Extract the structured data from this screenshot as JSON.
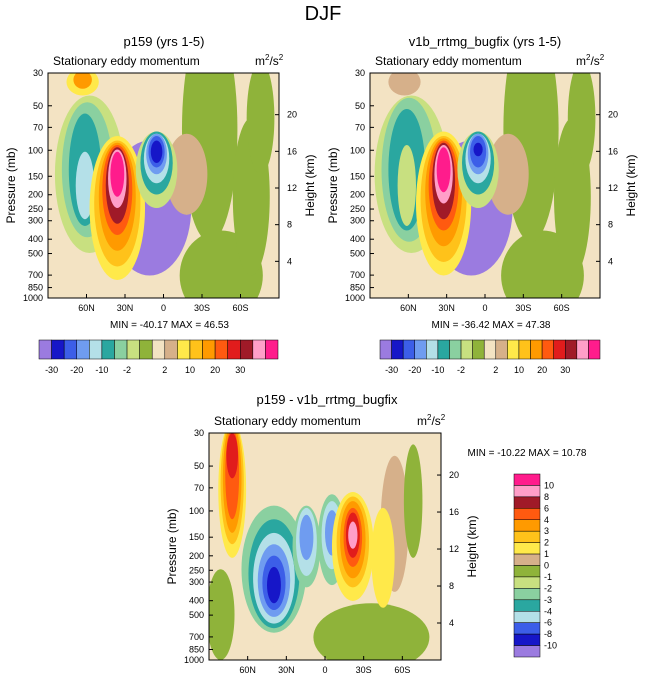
{
  "figure": {
    "title": "DJF"
  },
  "palette": {
    "colors": [
      "#9b7be0",
      "#1616c8",
      "#3c5ee8",
      "#6f9cf0",
      "#b4e0e8",
      "#2aa7a0",
      "#8ad0a0",
      "#c8e080",
      "#8fb33a",
      "#f3e3c3",
      "#d6b08a",
      "#ffe94a",
      "#ffc21a",
      "#ff9a00",
      "#ff5a10",
      "#e11c1c",
      "#a01a28",
      "#ff9ec8",
      "#ff1c8c"
    ]
  },
  "chart_data": [
    {
      "type": "contour",
      "id": "p159",
      "title": "p159 (yrs 1-5)",
      "left_label": "Stationary eddy momentum",
      "units_base": "m",
      "units_sup": "2",
      "units_den": "/s",
      "units_den_sup": "2",
      "ylabel": "Pressure (mb)",
      "ylabel_right": "Height (km)",
      "pressure_ticks": [
        "30",
        "50",
        "70",
        "100",
        "150",
        "200",
        "250",
        "300",
        "400",
        "500",
        "700",
        "850",
        "1000"
      ],
      "height_ticks": [
        "20",
        "16",
        "12",
        "8",
        "4"
      ],
      "lat_ticks": [
        "60N",
        "30N",
        "0",
        "30S",
        "60S"
      ],
      "stats": "MIN = -40.17   MAX =  46.53",
      "colorbar_labels": [
        "-30",
        "-20",
        "-10",
        "-2",
        "2",
        "10",
        "20",
        "30"
      ]
    },
    {
      "type": "contour",
      "id": "v1b",
      "title": "v1b_rrtmg_bugfix (yrs 1-5)",
      "left_label": "Stationary eddy momentum",
      "units_base": "m",
      "units_sup": "2",
      "units_den": "/s",
      "units_den_sup": "2",
      "ylabel": "Pressure (mb)",
      "ylabel_right": "Height (km)",
      "pressure_ticks": [
        "30",
        "50",
        "70",
        "100",
        "150",
        "200",
        "250",
        "300",
        "400",
        "500",
        "700",
        "850",
        "1000"
      ],
      "height_ticks": [
        "20",
        "16",
        "12",
        "8",
        "4"
      ],
      "lat_ticks": [
        "60N",
        "30N",
        "0",
        "30S",
        "60S"
      ],
      "stats": "MIN = -36.42   MAX =  47.38",
      "colorbar_labels": [
        "-30",
        "-20",
        "-10",
        "-2",
        "2",
        "10",
        "20",
        "30"
      ]
    },
    {
      "type": "contour",
      "id": "diff",
      "title": "p159 - v1b_rrtmg_bugfix",
      "left_label": "Stationary eddy momentum",
      "units_base": "m",
      "units_sup": "2",
      "units_den": "/s",
      "units_den_sup": "2",
      "ylabel": "Pressure (mb)",
      "ylabel_right": "Height (km)",
      "pressure_ticks": [
        "30",
        "50",
        "70",
        "100",
        "150",
        "200",
        "250",
        "300",
        "400",
        "500",
        "700",
        "850",
        "1000"
      ],
      "height_ticks": [
        "20",
        "16",
        "12",
        "8",
        "4"
      ],
      "lat_ticks": [
        "60N",
        "30N",
        "0",
        "30S",
        "60S"
      ],
      "stats": "MIN = -10.22   MAX =  10.78",
      "colorbar_labels": [
        "10",
        "8",
        "6",
        "4",
        "3",
        "2",
        "1",
        "0",
        "-1",
        "-2",
        "-3",
        "-4",
        "-6",
        "-8",
        "-10"
      ]
    }
  ]
}
